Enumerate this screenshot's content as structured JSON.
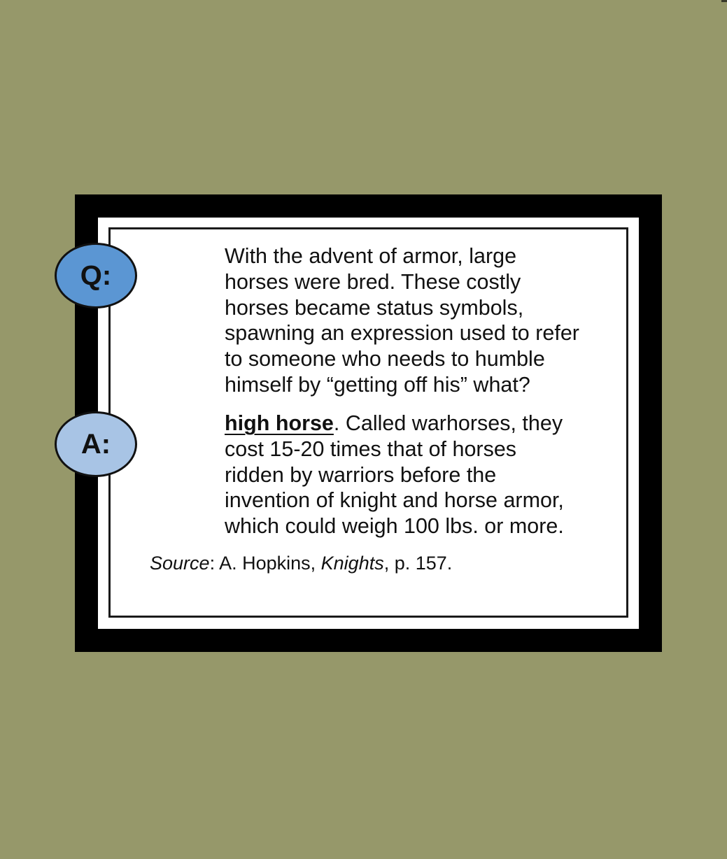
{
  "colors": {
    "background": "#96986a",
    "frame": "#000000",
    "paper": "#ffffff",
    "question_bubble": "#5b96d3",
    "answer_bubble": "#a8c4e5"
  },
  "question": {
    "badge": "Q:",
    "lines": [
      "With the advent of armor, large",
      "horses were bred. These costly",
      "horses became status symbols,",
      "spawning an expression used to refer",
      "to someone who needs to humble",
      "himself by “getting off his” what?"
    ]
  },
  "answer": {
    "badge": "A:",
    "term": "high horse",
    "first_line_rest": ". Called warhorses, they",
    "lines": [
      "cost 15-20 times that of horses",
      "ridden by warriors before the",
      "invention of knight and horse armor,",
      "which could weigh 100 lbs. or more."
    ]
  },
  "source": {
    "label": "Source",
    "separator": ":",
    "author": " A. Hopkins, ",
    "title": "Knights",
    "page": ", p. 157."
  }
}
